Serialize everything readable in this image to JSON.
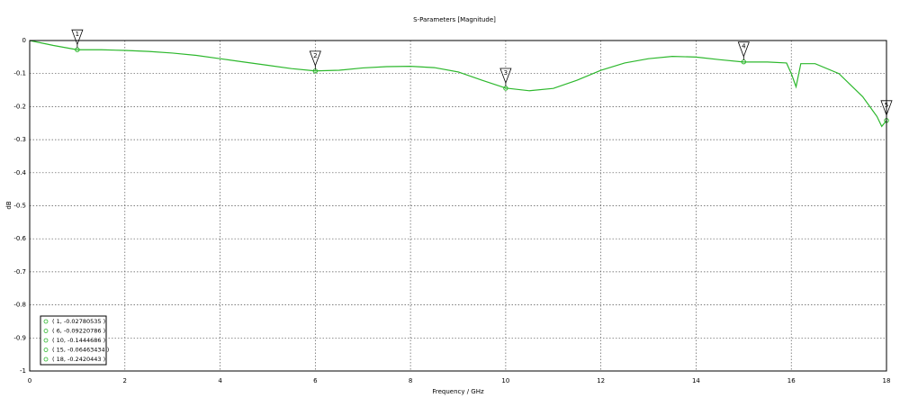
{
  "chart_data": {
    "type": "line",
    "title": "S-Parameters [Magnitude]",
    "x_label": "Frequency / GHz",
    "y_label": "dB",
    "xlim": [
      0,
      18
    ],
    "ylim": [
      -1,
      0
    ],
    "xticks": [
      0,
      2,
      4,
      6,
      8,
      10,
      12,
      14,
      16,
      18
    ],
    "yticks": [
      0,
      -0.1,
      -0.2,
      -0.3,
      -0.4,
      -0.5,
      -0.6,
      -0.7,
      -0.8,
      -0.9,
      -1
    ],
    "grid": true,
    "x": [
      0,
      0.5,
      1,
      1.5,
      2,
      2.5,
      3,
      3.5,
      4,
      4.5,
      5,
      5.5,
      6,
      6.5,
      7,
      7.5,
      8,
      8.5,
      9,
      9.5,
      10,
      10.5,
      11,
      11.5,
      12,
      12.5,
      13,
      13.5,
      14,
      14.5,
      15,
      15.5,
      15.9,
      16,
      16.1,
      16.2,
      16.5,
      17,
      17.5,
      17.8,
      17.9,
      18
    ],
    "series": [
      {
        "color": "#2db82d",
        "values": [
          0,
          -0.015,
          -0.028,
          -0.028,
          -0.03,
          -0.033,
          -0.038,
          -0.045,
          -0.055,
          -0.065,
          -0.075,
          -0.085,
          -0.092,
          -0.09,
          -0.083,
          -0.079,
          -0.078,
          -0.082,
          -0.095,
          -0.12,
          -0.144,
          -0.152,
          -0.145,
          -0.12,
          -0.09,
          -0.068,
          -0.055,
          -0.048,
          -0.05,
          -0.058,
          -0.065,
          -0.065,
          -0.068,
          -0.1,
          -0.14,
          -0.07,
          -0.07,
          -0.1,
          -0.17,
          -0.23,
          -0.26,
          -0.242
        ]
      }
    ],
    "markers": [
      {
        "label": "1",
        "x": 1,
        "y": -0.02780535,
        "text": "( 1, -0.02780535 )"
      },
      {
        "label": "2",
        "x": 6,
        "y": -0.09220786,
        "text": "( 6, -0.09220786 )"
      },
      {
        "label": "3",
        "x": 10,
        "y": -0.1444686,
        "text": "( 10, -0.1444686 )"
      },
      {
        "label": "4",
        "x": 15,
        "y": -0.06463434,
        "text": "( 15, -0.06463434 )"
      },
      {
        "label": "5",
        "x": 18,
        "y": -0.2420443,
        "text": "( 18, -0.2420443 )"
      }
    ]
  }
}
